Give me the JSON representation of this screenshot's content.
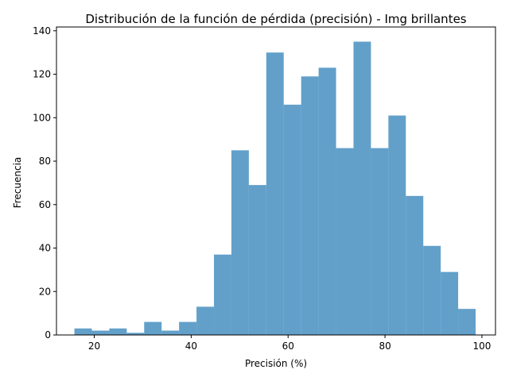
{
  "chart_data": {
    "type": "bar",
    "title": "Distribución de la función de pérdida (precisión) - Img brillantes",
    "xlabel": "Precisión (%)",
    "ylabel": "Frecuencia",
    "xlim": [
      12.2,
      102.8
    ],
    "ylim": [
      0,
      141.75
    ],
    "x_ticks": [
      20,
      40,
      60,
      80,
      100
    ],
    "y_ticks": [
      0,
      20,
      40,
      60,
      80,
      100,
      120,
      140
    ],
    "bin_start": 15.9,
    "bin_width": 3.6,
    "values": [
      3,
      2,
      3,
      1,
      6,
      2,
      6,
      13,
      37,
      85,
      69,
      130,
      106,
      119,
      123,
      86,
      135,
      86,
      101,
      64,
      41,
      29,
      12
    ],
    "bar_color": "#1f77b4",
    "bar_opacity": 0.7,
    "grid": false,
    "legend": "none"
  }
}
